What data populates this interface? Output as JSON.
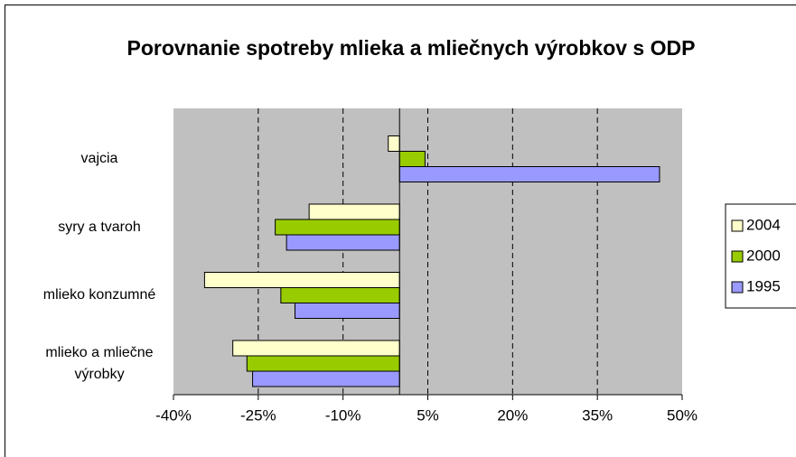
{
  "chart_data": {
    "type": "barh",
    "title": "Porovnanie spotreby mlieka a mliečnych výrobkov s ODP",
    "categories": [
      "vajcia",
      "syry a tvaroh",
      "mlieko konzumné",
      "mlieko a mliečne výrobky"
    ],
    "series": [
      {
        "name": "2004",
        "color": "#FFFFCC",
        "values": [
          -2,
          -16,
          -34.5,
          -29.5
        ]
      },
      {
        "name": "2000",
        "color": "#99CC00",
        "values": [
          4.5,
          -22,
          -21,
          -27
        ]
      },
      {
        "name": "1995",
        "color": "#9999FF",
        "values": [
          46,
          -20,
          -18.5,
          -26
        ]
      }
    ],
    "xlim": [
      -40,
      50
    ],
    "xticks": [
      {
        "value": -40,
        "label": "-40%"
      },
      {
        "value": -25,
        "label": "-25%"
      },
      {
        "value": -10,
        "label": "-10%"
      },
      {
        "value": 5,
        "label": "5%"
      },
      {
        "value": 20,
        "label": "20%"
      },
      {
        "value": 35,
        "label": "35%"
      },
      {
        "value": 50,
        "label": "50%"
      }
    ],
    "grid": true,
    "legend": "right"
  }
}
